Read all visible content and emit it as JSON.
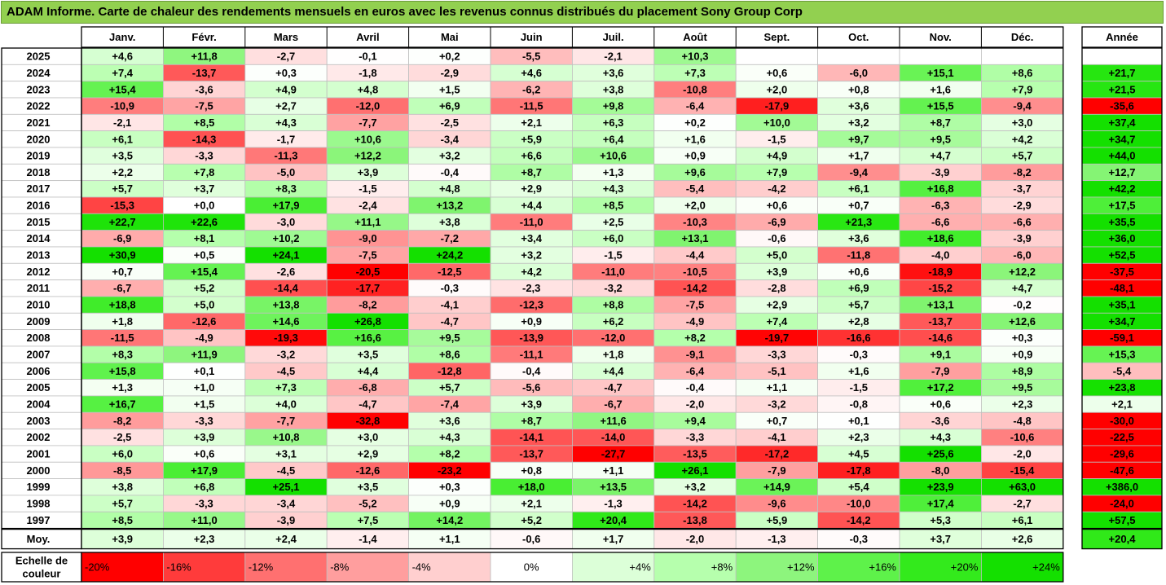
{
  "title": "ADAM Informe. Carte de chaleur des rendements mensuels en euros avec les revenus connus distribués du placement Sony Group Corp",
  "chart_data": {
    "type": "heatmap",
    "months": [
      "Janv.",
      "Févr.",
      "Mars",
      "Avril",
      "Mai",
      "Juin",
      "Juil.",
      "Août",
      "Sept.",
      "Oct.",
      "Nov.",
      "Déc."
    ],
    "year_header": "Année",
    "rows": [
      {
        "label": "2025",
        "values": [
          "+4,6",
          "+11,8",
          "-2,7",
          "-0,1",
          "+0,2",
          "-5,5",
          "-2,1",
          "+10,3",
          null,
          null,
          null,
          null
        ],
        "year": null
      },
      {
        "label": "2024",
        "values": [
          "+7,4",
          "-13,7",
          "+0,3",
          "-1,8",
          "-2,9",
          "+4,6",
          "+3,6",
          "+7,3",
          "+0,6",
          "-6,0",
          "+15,1",
          "+8,6"
        ],
        "year": "+21,7"
      },
      {
        "label": "2023",
        "values": [
          "+15,4",
          "-3,6",
          "+4,9",
          "+4,8",
          "+1,5",
          "-6,2",
          "+3,8",
          "-10,8",
          "+2,0",
          "+0,8",
          "+1,6",
          "+7,9"
        ],
        "year": "+21,5"
      },
      {
        "label": "2022",
        "values": [
          "-10,9",
          "-7,5",
          "+2,7",
          "-12,0",
          "+6,9",
          "-11,5",
          "+9,8",
          "-6,4",
          "-17,9",
          "+3,6",
          "+15,5",
          "-9,4"
        ],
        "year": "-35,6"
      },
      {
        "label": "2021",
        "values": [
          "-2,1",
          "+8,5",
          "+4,3",
          "-7,7",
          "-2,5",
          "+2,1",
          "+6,3",
          "+0,2",
          "+10,0",
          "+3,2",
          "+8,7",
          "+3,0"
        ],
        "year": "+37,4"
      },
      {
        "label": "2020",
        "values": [
          "+6,1",
          "-14,3",
          "-1,7",
          "+10,6",
          "-3,4",
          "+5,9",
          "+6,4",
          "+1,6",
          "-1,5",
          "+9,7",
          "+9,5",
          "+4,2"
        ],
        "year": "+34,7"
      },
      {
        "label": "2019",
        "values": [
          "+3,5",
          "-3,3",
          "-11,3",
          "+12,2",
          "+3,2",
          "+6,6",
          "+10,6",
          "+0,9",
          "+4,9",
          "+1,7",
          "+4,7",
          "+5,7"
        ],
        "year": "+44,0"
      },
      {
        "label": "2018",
        "values": [
          "+2,2",
          "+7,8",
          "-5,0",
          "+3,9",
          "-0,4",
          "+8,7",
          "+1,3",
          "+9,6",
          "+7,9",
          "-9,4",
          "-3,9",
          "-8,2"
        ],
        "year": "+12,7"
      },
      {
        "label": "2017",
        "values": [
          "+5,7",
          "+3,7",
          "+8,3",
          "-1,5",
          "+4,8",
          "+2,9",
          "+4,3",
          "-5,4",
          "-4,2",
          "+6,1",
          "+16,8",
          "-3,7"
        ],
        "year": "+42,2"
      },
      {
        "label": "2016",
        "values": [
          "-15,3",
          "+0,0",
          "+17,9",
          "-2,4",
          "+13,2",
          "+4,4",
          "+8,5",
          "+2,0",
          "+0,6",
          "+0,7",
          "-6,3",
          "-2,9"
        ],
        "year": "+17,5"
      },
      {
        "label": "2015",
        "values": [
          "+22,7",
          "+22,6",
          "-3,0",
          "+11,1",
          "+3,8",
          "-11,0",
          "+2,5",
          "-10,3",
          "-6,9",
          "+21,3",
          "-6,6",
          "-6,6"
        ],
        "year": "+35,5"
      },
      {
        "label": "2014",
        "values": [
          "-6,9",
          "+8,1",
          "+10,2",
          "-9,0",
          "-7,2",
          "+3,4",
          "+6,0",
          "+13,1",
          "-0,6",
          "+3,6",
          "+18,6",
          "-3,9"
        ],
        "year": "+36,0"
      },
      {
        "label": "2013",
        "values": [
          "+30,9",
          "+0,5",
          "+24,1",
          "-7,5",
          "+24,2",
          "+3,2",
          "-1,5",
          "-4,4",
          "+5,0",
          "-11,8",
          "-4,0",
          "-6,0"
        ],
        "year": "+52,5"
      },
      {
        "label": "2012",
        "values": [
          "+0,7",
          "+15,4",
          "-2,6",
          "-20,5",
          "-12,5",
          "+4,2",
          "-11,0",
          "-10,5",
          "+3,9",
          "+0,6",
          "-18,9",
          "+12,2"
        ],
        "year": "-37,5"
      },
      {
        "label": "2011",
        "values": [
          "-6,7",
          "+5,2",
          "-14,4",
          "-17,7",
          "-0,3",
          "-2,3",
          "-3,2",
          "-14,2",
          "-2,8",
          "+6,9",
          "-15,2",
          "+4,7"
        ],
        "year": "-48,1"
      },
      {
        "label": "2010",
        "values": [
          "+18,8",
          "+5,0",
          "+13,8",
          "-8,2",
          "-4,1",
          "-12,3",
          "+8,8",
          "-7,5",
          "+2,9",
          "+5,7",
          "+13,1",
          "-0,2"
        ],
        "year": "+35,1"
      },
      {
        "label": "2009",
        "values": [
          "+1,8",
          "-12,6",
          "+14,6",
          "+26,8",
          "-4,7",
          "+0,9",
          "+6,2",
          "-4,9",
          "+7,4",
          "+2,8",
          "-13,7",
          "+12,6"
        ],
        "year": "+34,7"
      },
      {
        "label": "2008",
        "values": [
          "-11,5",
          "-4,9",
          "-19,3",
          "+16,6",
          "+9,5",
          "-13,9",
          "-12,0",
          "+8,2",
          "-19,7",
          "-16,6",
          "-14,6",
          "+0,3"
        ],
        "year": "-59,1"
      },
      {
        "label": "2007",
        "values": [
          "+8,3",
          "+11,9",
          "-3,2",
          "+3,5",
          "+8,6",
          "-11,1",
          "+1,8",
          "-9,1",
          "-3,3",
          "-0,3",
          "+9,1",
          "+0,9"
        ],
        "year": "+15,3"
      },
      {
        "label": "2006",
        "values": [
          "+15,8",
          "+0,1",
          "-4,5",
          "+4,4",
          "-12,8",
          "-0,4",
          "+4,4",
          "-6,4",
          "-5,1",
          "+1,6",
          "-7,9",
          "+8,9"
        ],
        "year": "-5,4"
      },
      {
        "label": "2005",
        "values": [
          "+1,3",
          "+1,0",
          "+7,3",
          "-6,8",
          "+5,7",
          "-5,6",
          "-4,7",
          "-0,4",
          "+1,1",
          "-1,5",
          "+17,2",
          "+9,5"
        ],
        "year": "+23,8"
      },
      {
        "label": "2004",
        "values": [
          "+16,7",
          "+1,5",
          "+4,0",
          "-4,7",
          "-7,4",
          "+3,9",
          "-6,7",
          "-2,0",
          "-3,2",
          "-0,8",
          "+0,6",
          "+2,3"
        ],
        "year": "+2,1"
      },
      {
        "label": "2003",
        "values": [
          "-8,2",
          "-3,3",
          "-7,7",
          "-32,8",
          "+3,6",
          "+8,7",
          "+11,6",
          "+9,4",
          "+0,7",
          "+0,1",
          "-3,6",
          "-4,8"
        ],
        "year": "-30,0"
      },
      {
        "label": "2002",
        "values": [
          "-2,5",
          "+3,9",
          "+10,8",
          "+3,0",
          "+4,3",
          "-14,1",
          "-14,0",
          "-3,3",
          "-4,1",
          "+2,3",
          "+4,3",
          "-10,6"
        ],
        "year": "-22,5"
      },
      {
        "label": "2001",
        "values": [
          "+6,0",
          "+0,6",
          "+3,1",
          "+2,9",
          "+8,2",
          "-13,7",
          "-27,7",
          "-13,5",
          "-17,2",
          "+4,5",
          "+25,6",
          "-2,0"
        ],
        "year": "-29,6"
      },
      {
        "label": "2000",
        "values": [
          "-8,5",
          "+17,9",
          "-4,5",
          "-12,6",
          "-23,2",
          "+0,8",
          "+1,1",
          "+26,1",
          "-7,9",
          "-17,8",
          "-8,0",
          "-15,4"
        ],
        "year": "-47,6"
      },
      {
        "label": "1999",
        "values": [
          "+3,8",
          "+6,8",
          "+25,1",
          "+3,5",
          "+0,3",
          "+18,0",
          "+13,5",
          "+3,2",
          "+14,9",
          "+5,4",
          "+23,9",
          "+63,0"
        ],
        "year": "+386,0"
      },
      {
        "label": "1998",
        "values": [
          "+5,7",
          "-3,3",
          "-3,4",
          "-5,2",
          "+0,9",
          "+2,1",
          "-1,3",
          "-14,2",
          "-9,6",
          "-10,0",
          "+17,4",
          "-2,7"
        ],
        "year": "-24,0"
      },
      {
        "label": "1997",
        "values": [
          "+8,5",
          "+11,0",
          "-3,9",
          "+7,5",
          "+14,2",
          "+5,2",
          "+20,4",
          "-13,8",
          "+5,9",
          "-14,2",
          "+5,3",
          "+6,1"
        ],
        "year": "+57,5"
      }
    ],
    "average": {
      "label": "Moy.",
      "values": [
        "+3,9",
        "+2,3",
        "+2,4",
        "-1,4",
        "+1,1",
        "-0,6",
        "+1,7",
        "-2,0",
        "-1,3",
        "-0,3",
        "+3,7",
        "+2,6"
      ],
      "year": "+20,4"
    },
    "color_scale": {
      "label_line1": "Echelle de",
      "label_line2": "couleur",
      "steps": [
        {
          "label": "-20%",
          "value": -20,
          "color": "#ff0000"
        },
        {
          "label": "-16%",
          "value": -16,
          "color": "#ff3b3b"
        },
        {
          "label": "-12%",
          "value": -12,
          "color": "#ff7070"
        },
        {
          "label": "-8%",
          "value": -8,
          "color": "#ff9e9e"
        },
        {
          "label": "-4%",
          "value": -4,
          "color": "#ffcfcf"
        },
        {
          "label": "0%",
          "value": 0,
          "color": "#ffffff"
        },
        {
          "label": "+4%",
          "value": 4,
          "color": "#dcffd8"
        },
        {
          "label": "+8%",
          "value": 8,
          "color": "#b6ffad"
        },
        {
          "label": "+12%",
          "value": 12,
          "color": "#8df57d"
        },
        {
          "label": "+16%",
          "value": 16,
          "color": "#5ef24a"
        },
        {
          "label": "+20%",
          "value": 20,
          "color": "#33ea1c"
        },
        {
          "label": "+24%",
          "value": 24,
          "color": "#14e000"
        }
      ]
    }
  }
}
